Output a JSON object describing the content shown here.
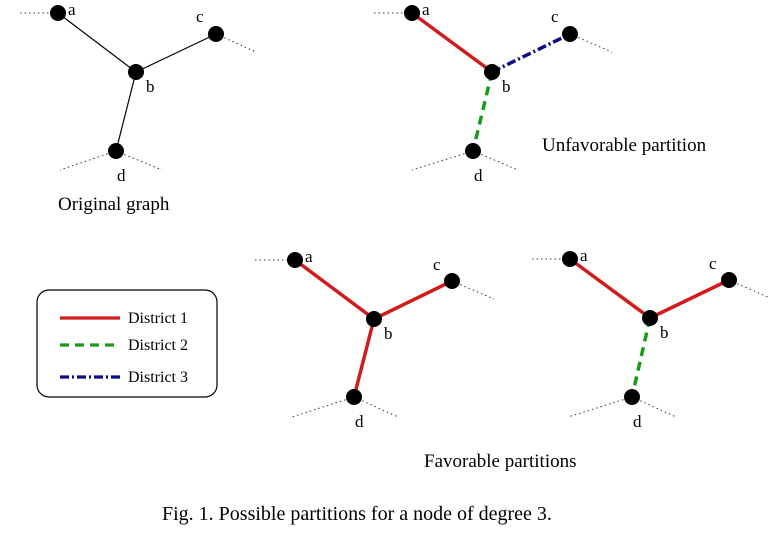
{
  "captions": {
    "original": "Original graph",
    "unfavorable": "Unfavorable partition",
    "favorable": "Favorable partitions"
  },
  "figure_caption": "Fig. 1.  Possible partitions for a node of degree 3.",
  "node_labels": {
    "a": "a",
    "b": "b",
    "c": "c",
    "d": "d"
  },
  "legend": [
    {
      "key": "d1",
      "label": "District 1",
      "color": "#d01c1c",
      "style": "solid"
    },
    {
      "key": "d2",
      "label": "District 2",
      "color": "#1a9a1a",
      "style": "dashed"
    },
    {
      "key": "d3",
      "label": "District 3",
      "color": "#0a0a8c",
      "style": "dash-dot"
    }
  ],
  "graphs": [
    {
      "id": "original",
      "edges": {
        "ab": "plain",
        "bc": "plain",
        "bd": "plain"
      }
    },
    {
      "id": "unfavorable",
      "edges": {
        "ab": "d1",
        "bc": "d3",
        "bd": "d2"
      }
    },
    {
      "id": "favorable-1",
      "edges": {
        "ab": "d1",
        "bc": "d1",
        "bd": "d1"
      }
    },
    {
      "id": "favorable-2",
      "edges": {
        "ab": "d1",
        "bc": "d1",
        "bd": "d2"
      }
    }
  ],
  "colors": {
    "node": "#000000",
    "plain_edge": "#000000",
    "stub": "#333333",
    "legend_border": "#000000"
  }
}
